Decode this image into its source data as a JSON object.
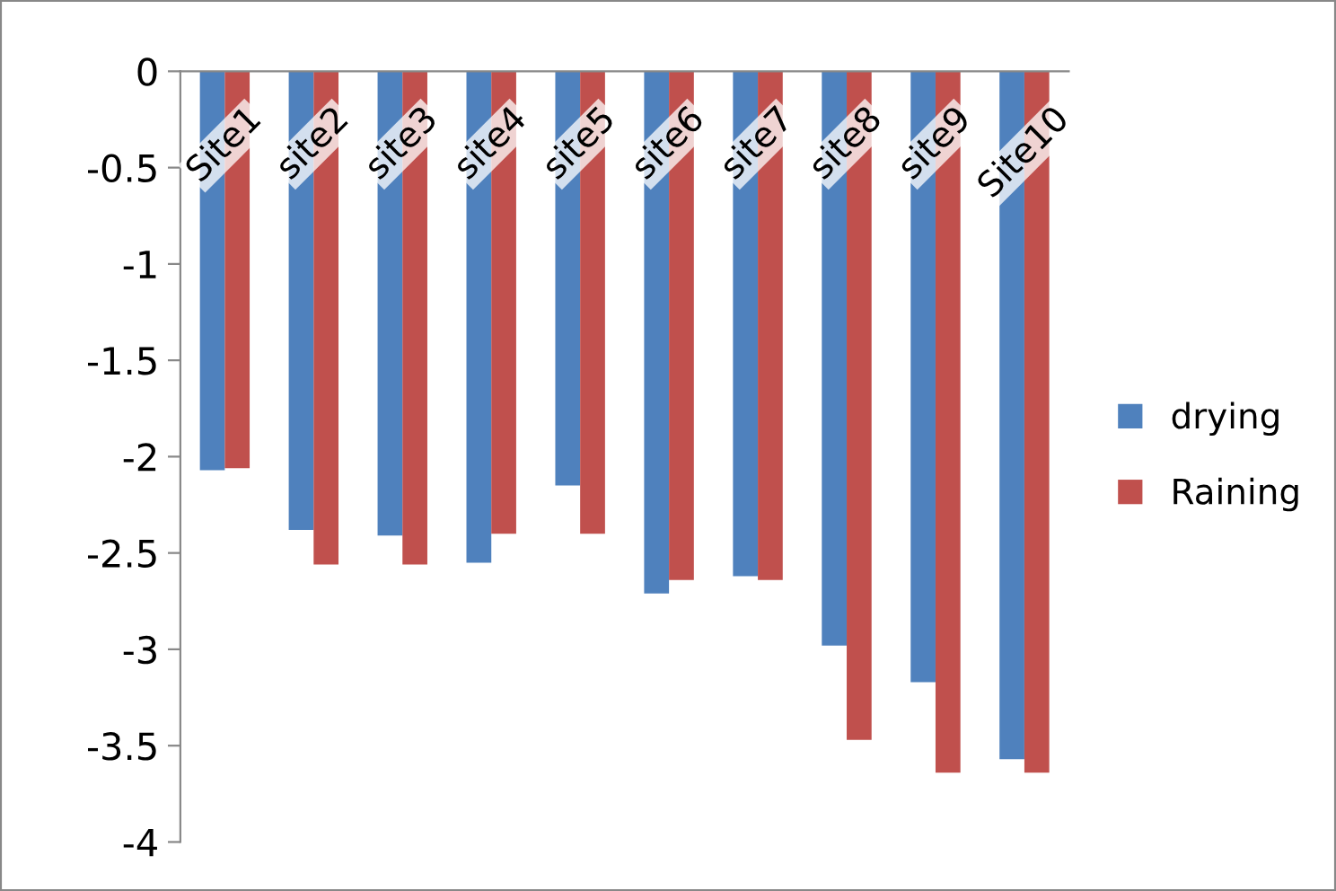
{
  "chart_data": {
    "type": "bar",
    "categories": [
      "Site1",
      "site2",
      "site3",
      "site4",
      "site5",
      "site6",
      "site7",
      "site8",
      "site9",
      "Site10"
    ],
    "series": [
      {
        "name": "drying",
        "color": "#4f81bd",
        "values": [
          -2.07,
          -2.38,
          -2.41,
          -2.55,
          -2.15,
          -2.71,
          -2.62,
          -2.98,
          -3.17,
          -3.57
        ]
      },
      {
        "name": "Raining",
        "color": "#c0504d",
        "values": [
          -2.06,
          -2.56,
          -2.56,
          -2.4,
          -2.4,
          -2.64,
          -2.64,
          -3.47,
          -3.64,
          -3.64
        ]
      }
    ],
    "ylim": [
      -4,
      0
    ],
    "yticks": [
      -4,
      -3.5,
      -3,
      -2.5,
      -2,
      -1.5,
      -1,
      -0.5,
      0
    ],
    "grid": false,
    "legend": "right"
  }
}
